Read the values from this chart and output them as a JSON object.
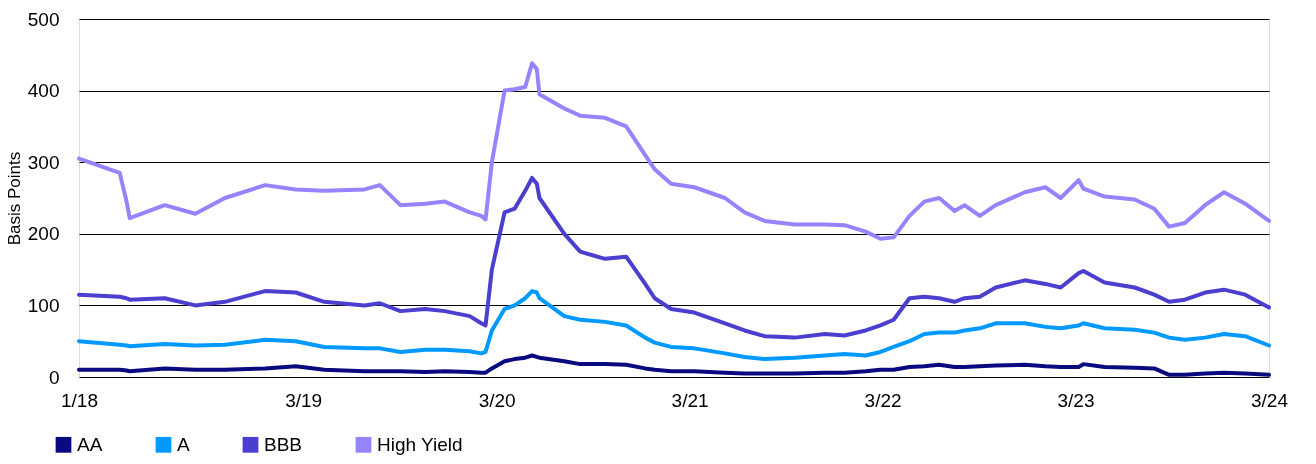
{
  "chart_data": {
    "type": "line",
    "ylabel": "Basis Points",
    "x": [
      "2018-01-01",
      "2018-03-19",
      "2018-04-01",
      "2018-04-07",
      "2018-06-12",
      "2018-08-09",
      "2018-10-04",
      "2018-12-19",
      "2019-02-15",
      "2019-04-10",
      "2019-06-25",
      "2019-07-24",
      "2019-09-01",
      "2019-10-18",
      "2019-11-24",
      "2020-01-10",
      "2020-02-01",
      "2020-02-09",
      "2020-02-21",
      "2020-03-16",
      "2020-04-04",
      "2020-04-24",
      "2020-05-07",
      "2020-05-16",
      "2020-05-21",
      "2020-07-07",
      "2020-08-06",
      "2020-09-22",
      "2020-11-01",
      "2020-12-07",
      "2020-12-25",
      "2021-01-25",
      "2021-03-10",
      "2021-05-07",
      "2021-06-13",
      "2021-07-21",
      "2021-09-16",
      "2021-11-12",
      "2021-12-19",
      "2022-01-28",
      "2022-02-25",
      "2022-03-22",
      "2022-04-21",
      "2022-05-19",
      "2022-06-16",
      "2022-07-15",
      "2022-08-03",
      "2022-09-01",
      "2022-10-01",
      "2022-11-25",
      "2023-01-03",
      "2023-02-01",
      "2023-03-07",
      "2023-03-16",
      "2023-04-25",
      "2023-06-21",
      "2023-07-28",
      "2023-08-25",
      "2023-09-24",
      "2023-11-01",
      "2023-12-07",
      "2024-01-16",
      "2024-03-01"
    ],
    "series": [
      {
        "name": "AA",
        "color": "#0a0a80",
        "values": [
          10,
          10,
          9,
          8,
          12,
          10,
          10,
          12,
          15,
          10,
          8,
          8,
          8,
          7,
          8,
          7,
          6,
          6,
          12,
          22,
          25,
          27,
          30,
          28,
          27,
          22,
          18,
          18,
          17,
          12,
          10,
          8,
          8,
          6,
          5,
          5,
          5,
          6,
          6,
          8,
          10,
          10,
          14,
          15,
          17,
          14,
          14,
          15,
          16,
          17,
          15,
          14,
          14,
          18,
          14,
          13,
          12,
          3,
          3,
          5,
          6,
          5,
          3
        ]
      },
      {
        "name": "A",
        "color": "#0099ff",
        "values": [
          50,
          45,
          44,
          43,
          46,
          44,
          45,
          52,
          50,
          42,
          40,
          40,
          35,
          38,
          38,
          36,
          33,
          35,
          65,
          95,
          100,
          110,
          120,
          118,
          110,
          85,
          80,
          77,
          72,
          55,
          48,
          42,
          40,
          33,
          28,
          25,
          27,
          30,
          32,
          30,
          35,
          42,
          50,
          60,
          62,
          62,
          65,
          68,
          75,
          75,
          70,
          68,
          72,
          75,
          68,
          66,
          62,
          55,
          52,
          55,
          60,
          57,
          44
        ]
      },
      {
        "name": "BBB",
        "color": "#4a3fcf",
        "values": [
          115,
          112,
          110,
          108,
          110,
          100,
          105,
          120,
          118,
          105,
          100,
          103,
          92,
          95,
          92,
          85,
          75,
          72,
          150,
          230,
          235,
          260,
          278,
          270,
          250,
          200,
          175,
          165,
          168,
          130,
          110,
          95,
          90,
          75,
          65,
          57,
          55,
          60,
          58,
          65,
          72,
          80,
          110,
          112,
          110,
          105,
          110,
          112,
          125,
          135,
          130,
          125,
          145,
          148,
          132,
          125,
          115,
          105,
          108,
          118,
          122,
          115,
          97
        ]
      },
      {
        "name": "High Yield",
        "color": "#9485ff",
        "values": [
          305,
          285,
          245,
          222,
          240,
          228,
          250,
          268,
          262,
          260,
          262,
          268,
          240,
          242,
          245,
          230,
          225,
          220,
          300,
          400,
          402,
          405,
          438,
          430,
          395,
          375,
          365,
          362,
          350,
          310,
          290,
          270,
          265,
          250,
          230,
          218,
          213,
          213,
          212,
          203,
          193,
          195,
          225,
          245,
          250,
          232,
          240,
          225,
          240,
          258,
          265,
          250,
          275,
          263,
          252,
          248,
          235,
          210,
          215,
          240,
          258,
          242,
          218
        ]
      }
    ],
    "xlim": [
      "2018-01-01",
      "2024-03-01"
    ],
    "xticks": [
      {
        "value": "2018-01-01",
        "label": "1/18"
      },
      {
        "value": "2019-03-01",
        "label": "3/19"
      },
      {
        "value": "2020-03-01",
        "label": "3/20"
      },
      {
        "value": "2021-03-01",
        "label": "3/21"
      },
      {
        "value": "2022-03-01",
        "label": "3/22"
      },
      {
        "value": "2023-03-01",
        "label": "3/23"
      },
      {
        "value": "2024-03-01",
        "label": "3/24"
      }
    ],
    "ylim": [
      0,
      500
    ],
    "yticks": [
      0,
      100,
      200,
      300,
      400,
      500
    ],
    "grid": "y",
    "legend": "bottom left",
    "line_style": "solid",
    "marker": "none"
  }
}
